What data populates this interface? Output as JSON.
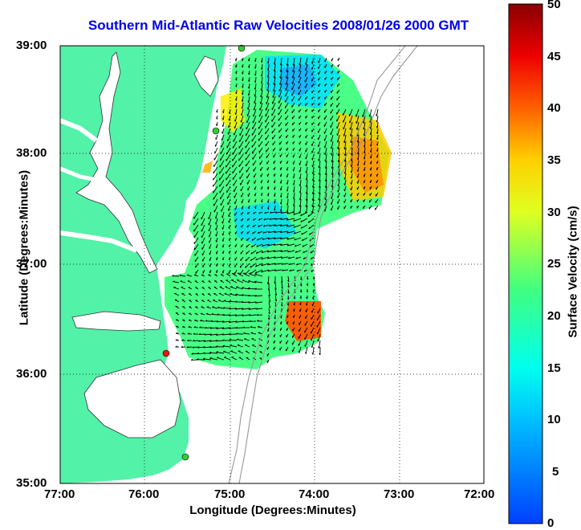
{
  "title": "Southern Mid-Atlantic Raw Velocities 2008/01/26 2000 GMT",
  "axes": {
    "xlabel": "Longitude (Degrees:Minutes)",
    "ylabel": "Latitude (Degrees:Minutes)",
    "xticks": [
      "77:00",
      "76:00",
      "75:00",
      "74:00",
      "73:00",
      "72:00"
    ],
    "yticks": [
      "39:00",
      "38:00",
      "37:00",
      "36:00",
      "35:00"
    ]
  },
  "colorbar": {
    "label": "Surface Velocity (cm/s)",
    "ticks": [
      "50",
      "45",
      "40",
      "35",
      "30",
      "25",
      "20",
      "15",
      "10",
      "5",
      "0"
    ],
    "min": 0,
    "max": 50
  },
  "colors": {
    "land": "#52f2a8",
    "water": "#ffffff",
    "title": "#0000ee",
    "site_green": "#33cc33",
    "site_red": "#ee1111"
  },
  "sites": [
    {
      "name": "site-1",
      "lon": -74.85,
      "lat": 39.0,
      "status": "green"
    },
    {
      "name": "site-2",
      "lon": -75.12,
      "lat": 38.2,
      "status": "green"
    },
    {
      "name": "site-3",
      "lon": -75.72,
      "lat": 36.18,
      "status": "red"
    },
    {
      "name": "site-4",
      "lon": -75.48,
      "lat": 35.25,
      "status": "green"
    }
  ]
}
